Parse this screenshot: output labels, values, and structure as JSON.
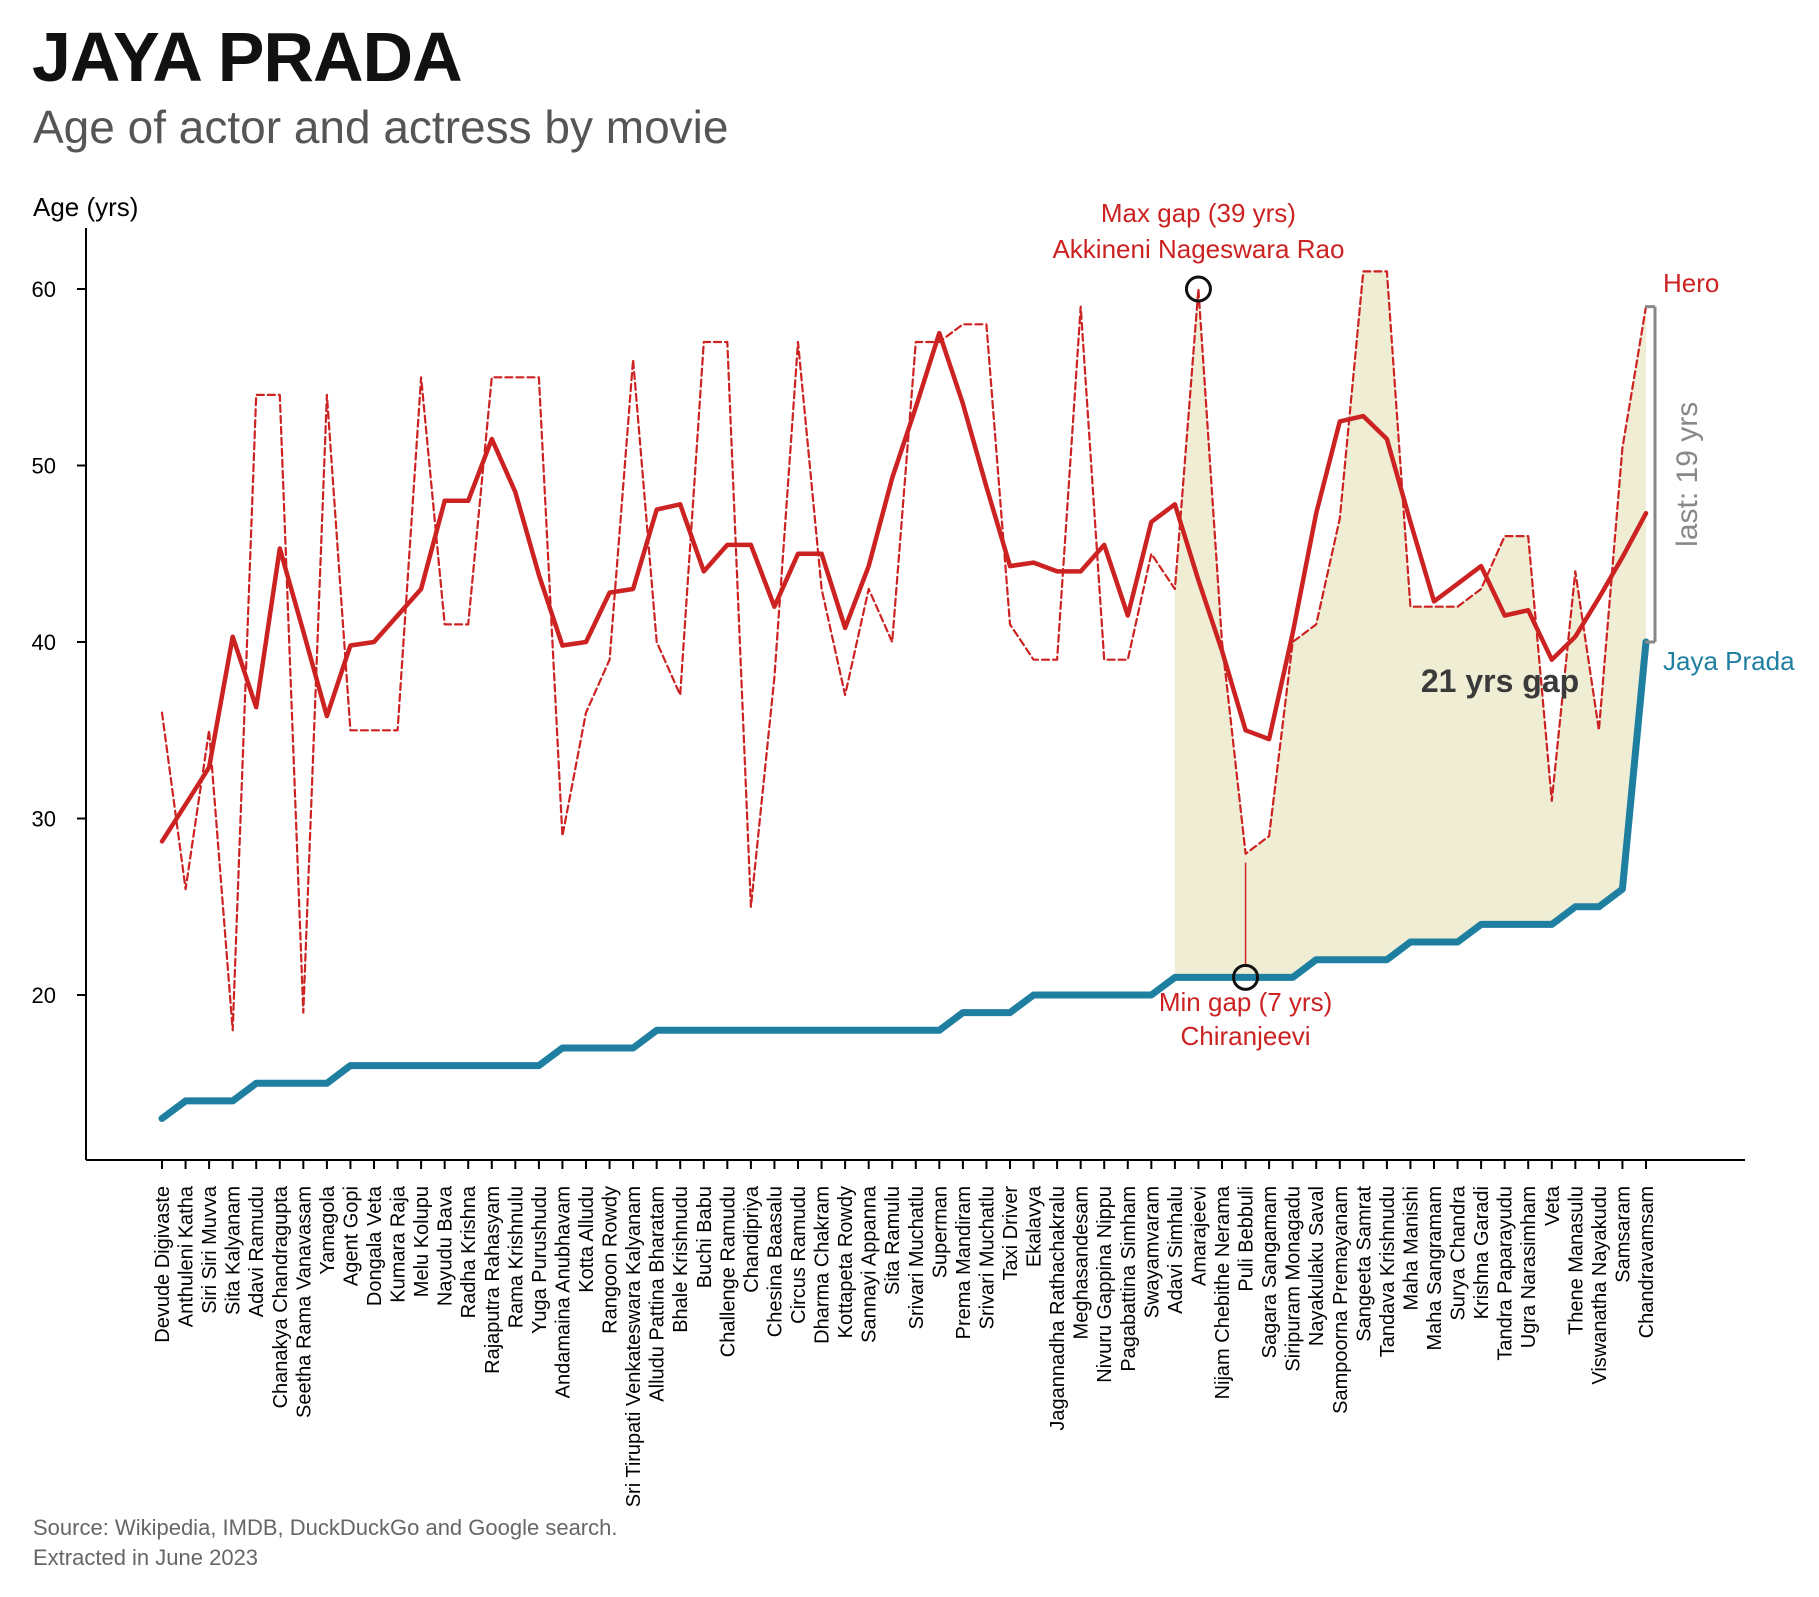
{
  "title": "JAYA PRADA",
  "subtitle": "Age of actor and actress by movie",
  "source": {
    "line1": "Source: Wikipedia, IMDB, DuckDuckGo and Google search.",
    "line2": "Extracted in June 2023"
  },
  "colors": {
    "hero": "#cc2222",
    "actress": "#1f7fa0",
    "gap_fill": "#efeed5",
    "bracket": "#888888",
    "axis": "#000000"
  },
  "chart_data": {
    "type": "line",
    "ylabel": "Age (yrs)",
    "yticks": [
      20,
      30,
      40,
      50,
      60
    ],
    "ylim": [
      10.6,
      63.5
    ],
    "grid": false,
    "categories": [
      "Devude Digivaste",
      "Anthuleni Katha",
      "Siri Siri Muvva",
      "Sita Kalyanam",
      "Adavi Ramudu",
      "Chanakya Chandragupta",
      "Seetha Rama Vanavasam",
      "Yamagola",
      "Agent Gopi",
      "Dongala Veta",
      "Kumara Raja",
      "Melu Kolupu",
      "Nayudu Bava",
      "Radha Krishna",
      "Rajaputra Rahasyam",
      "Rama Krishnulu",
      "Yuga Purushudu",
      "Andamaina Anubhavam",
      "Kotta Alludu",
      "Rangoon Rowdy",
      "Sri Tirupati Venkateswara Kalyanam",
      "Alludu Pattina Bharatam",
      "Bhale Krishnudu",
      "Buchi Babu",
      "Challenge Ramudu",
      "Chandipriya",
      "Chesina Baasalu",
      "Circus Ramudu",
      "Dharma Chakram",
      "Kottapeta Rowdy",
      "Sannayi Appanna",
      "Sita Ramulu",
      "Srivari Muchatlu",
      "Superman",
      "Prema Mandiram",
      "Srivari Muchatlu",
      "Taxi Driver",
      "Ekalavya",
      "Jagannadha Rathachakralu",
      "Meghasandesam",
      "Nivuru Gappina Nippu",
      "Pagabattina Simham",
      "Swayamvaram",
      "Adavi Simhalu",
      "Amarajeevi",
      "Nijam Chebithe Nerama",
      "Puli Bebbuli",
      "Sagara Sangamam",
      "Siripuram Monagadu",
      "Nayakulaku Saval",
      "Sampoorna Premayanam",
      "Sangeeta Samrat",
      "Tandava Krishnudu",
      "Maha Manishi",
      "Maha Sangramam",
      "Surya Chandra",
      "Krishna Garadi",
      "Tandra Paparayudu",
      "Ugra Narasimham",
      "Veta",
      "Thene Manasulu",
      "Viswanatha Nayakudu",
      "Samsaram",
      "Chandravamsam"
    ],
    "series": [
      {
        "name": "Hero",
        "style": "dashed",
        "values": [
          36,
          26,
          35,
          18,
          54,
          54,
          19,
          54,
          35,
          35,
          35,
          55,
          41,
          41,
          55,
          55,
          55,
          29,
          36,
          39,
          56,
          40,
          37,
          57,
          57,
          25,
          38,
          57,
          43,
          37,
          43,
          40,
          57,
          57,
          58,
          58,
          41,
          39,
          39,
          59,
          39,
          39,
          45,
          43,
          60,
          40,
          28,
          29,
          40,
          41,
          47,
          61,
          61,
          42,
          42,
          42,
          43,
          46,
          46,
          31,
          44,
          35,
          51,
          59
        ]
      },
      {
        "name": "Hero (rolling average)",
        "style": "solid",
        "values": [
          28.7,
          30.8,
          32.9,
          40.3,
          36.3,
          45.3,
          40.6,
          35.8,
          39.8,
          40.0,
          41.5,
          43.0,
          48.0,
          48.0,
          51.5,
          48.5,
          43.8,
          39.8,
          40.0,
          42.8,
          43.0,
          47.5,
          47.8,
          44.0,
          45.5,
          45.5,
          42.0,
          45.0,
          45.0,
          40.8,
          44.3,
          49.3,
          53.3,
          57.5,
          53.5,
          48.8,
          44.3,
          44.5,
          44.0,
          44.0,
          45.5,
          41.5,
          46.8,
          47.8,
          43.5,
          39.5,
          35.0,
          34.5,
          40.5,
          47.3,
          52.5,
          52.8,
          51.5,
          46.8,
          42.3,
          43.3,
          44.3,
          41.5,
          41.8,
          39.0,
          40.3,
          42.5,
          44.8,
          47.3
        ]
      },
      {
        "name": "Jaya Prada",
        "style": "solid",
        "values": [
          13,
          14,
          14,
          14,
          15,
          15,
          15,
          15,
          16,
          16,
          16,
          16,
          16,
          16,
          16,
          16,
          16,
          17,
          17,
          17,
          17,
          18,
          18,
          18,
          18,
          18,
          18,
          18,
          18,
          18,
          18,
          18,
          18,
          18,
          19,
          19,
          19,
          20,
          20,
          20,
          20,
          20,
          20,
          21,
          21,
          21,
          21,
          21,
          21,
          22,
          22,
          22,
          22,
          23,
          23,
          23,
          24,
          24,
          24,
          24,
          25,
          25,
          26,
          40
        ]
      }
    ],
    "gap_shading_start_index": 43,
    "labels": {
      "hero": "Hero",
      "actress": "Jaya Prada"
    },
    "annotations": {
      "max_gap": {
        "index": 44,
        "value": 60,
        "line1": "Max gap (39 yrs)",
        "line2": "Akkineni Nageswara Rao"
      },
      "min_gap": {
        "index": 46,
        "value": 21,
        "line1": "Min gap (7 yrs)",
        "line2": "Chiranjeevi"
      },
      "mean_gap": "21 yrs gap",
      "last_gap": "last: 19 yrs"
    }
  }
}
